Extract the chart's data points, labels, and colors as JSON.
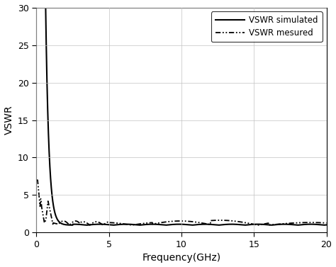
{
  "title": "",
  "xlabel": "Frequency(GHz)",
  "ylabel": "VSWR",
  "xlim": [
    0,
    20
  ],
  "ylim": [
    0,
    30
  ],
  "xticks": [
    0,
    5,
    10,
    15,
    20
  ],
  "yticks": [
    0,
    5,
    10,
    15,
    20,
    25,
    30
  ],
  "legend": [
    "VSWR simulated",
    "VSWR mesured"
  ],
  "line_color": "#000000",
  "background_color": "#ffffff",
  "grid_color": "#c0c0c0",
  "figsize": [
    4.74,
    3.77
  ],
  "dpi": 100
}
